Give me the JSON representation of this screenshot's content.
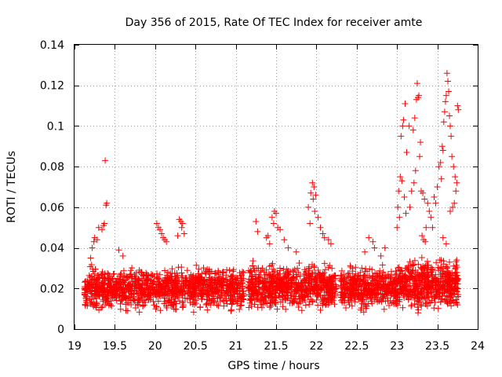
{
  "chart_data": {
    "type": "scatter",
    "title": "Day 356 of 2015, Rate Of TEC Index for receiver amte",
    "xlabel": "GPS time / hours",
    "ylabel": "ROTI / TECUs",
    "xlim": [
      19,
      24
    ],
    "ylim": [
      0,
      0.14
    ],
    "grid": true,
    "marker": "+",
    "marker_color": "#ff0000",
    "x_ticks": [
      {
        "value": 19,
        "label": "19"
      },
      {
        "value": 19.5,
        "label": "19.5"
      },
      {
        "value": 20,
        "label": "20"
      },
      {
        "value": 20.5,
        "label": "20.5"
      },
      {
        "value": 21,
        "label": "21"
      },
      {
        "value": 21.5,
        "label": "21.5"
      },
      {
        "value": 22,
        "label": "22"
      },
      {
        "value": 22.5,
        "label": "22.5"
      },
      {
        "value": 23,
        "label": "23"
      },
      {
        "value": 23.5,
        "label": "23.5"
      },
      {
        "value": 24,
        "label": "24"
      }
    ],
    "y_ticks": [
      {
        "value": 0,
        "label": "0"
      },
      {
        "value": 0.02,
        "label": "0.02"
      },
      {
        "value": 0.04,
        "label": "0.04"
      },
      {
        "value": 0.06,
        "label": "0.06"
      },
      {
        "value": 0.08,
        "label": "0.08"
      },
      {
        "value": 0.1,
        "label": "0.1"
      },
      {
        "value": 0.12,
        "label": "0.12"
      },
      {
        "value": 0.14,
        "label": "0.14"
      }
    ],
    "series": [
      {
        "name": "ROTI",
        "points": [
          [
            19.38,
            0.083
          ],
          [
            19.4,
            0.062
          ],
          [
            19.39,
            0.061
          ],
          [
            19.37,
            0.052
          ],
          [
            19.36,
            0.051
          ],
          [
            19.34,
            0.049
          ],
          [
            19.3,
            0.05
          ],
          [
            19.28,
            0.044
          ],
          [
            19.25,
            0.045
          ],
          [
            19.24,
            0.043
          ],
          [
            19.22,
            0.04
          ],
          [
            19.2,
            0.035
          ],
          [
            19.55,
            0.039
          ],
          [
            19.6,
            0.036
          ],
          [
            20.02,
            0.052
          ],
          [
            20.04,
            0.05
          ],
          [
            20.06,
            0.049
          ],
          [
            20.08,
            0.047
          ],
          [
            20.1,
            0.045
          ],
          [
            20.12,
            0.044
          ],
          [
            20.14,
            0.043
          ],
          [
            20.3,
            0.054
          ],
          [
            20.32,
            0.053
          ],
          [
            20.34,
            0.052
          ],
          [
            20.33,
            0.05
          ],
          [
            20.36,
            0.047
          ],
          [
            20.28,
            0.046
          ],
          [
            21.25,
            0.053
          ],
          [
            21.27,
            0.048
          ],
          [
            21.45,
            0.055
          ],
          [
            21.48,
            0.058
          ],
          [
            21.5,
            0.057
          ],
          [
            21.47,
            0.052
          ],
          [
            21.52,
            0.05
          ],
          [
            21.55,
            0.049
          ],
          [
            21.4,
            0.046
          ],
          [
            21.38,
            0.045
          ],
          [
            21.42,
            0.042
          ],
          [
            21.6,
            0.044
          ],
          [
            21.65,
            0.04
          ],
          [
            21.75,
            0.038
          ],
          [
            21.95,
            0.072
          ],
          [
            21.97,
            0.07
          ],
          [
            21.93,
            0.067
          ],
          [
            21.99,
            0.066
          ],
          [
            21.96,
            0.064
          ],
          [
            21.9,
            0.06
          ],
          [
            21.98,
            0.058
          ],
          [
            22.02,
            0.055
          ],
          [
            21.92,
            0.052
          ],
          [
            22.05,
            0.05
          ],
          [
            22.08,
            0.047
          ],
          [
            22.1,
            0.045
          ],
          [
            22.15,
            0.044
          ],
          [
            22.18,
            0.042
          ],
          [
            22.65,
            0.045
          ],
          [
            22.7,
            0.043
          ],
          [
            22.72,
            0.04
          ],
          [
            22.6,
            0.038
          ],
          [
            22.8,
            0.036
          ],
          [
            22.85,
            0.04
          ],
          [
            23.05,
            0.095
          ],
          [
            23.07,
            0.1
          ],
          [
            23.08,
            0.103
          ],
          [
            23.1,
            0.111
          ],
          [
            23.12,
            0.087
          ],
          [
            23.04,
            0.075
          ],
          [
            23.06,
            0.073
          ],
          [
            23.02,
            0.068
          ],
          [
            23.09,
            0.065
          ],
          [
            23.01,
            0.06
          ],
          [
            23.03,
            0.055
          ],
          [
            23.0,
            0.05
          ],
          [
            23.11,
            0.057
          ],
          [
            23.15,
            0.1
          ],
          [
            23.2,
            0.098
          ],
          [
            23.22,
            0.104
          ],
          [
            23.24,
            0.113
          ],
          [
            23.25,
            0.121
          ],
          [
            23.27,
            0.115
          ],
          [
            23.26,
            0.114
          ],
          [
            23.28,
            0.085
          ],
          [
            23.29,
            0.092
          ],
          [
            23.23,
            0.078
          ],
          [
            23.21,
            0.072
          ],
          [
            23.18,
            0.068
          ],
          [
            23.16,
            0.06
          ],
          [
            23.3,
            0.068
          ],
          [
            23.32,
            0.067
          ],
          [
            23.34,
            0.064
          ],
          [
            23.38,
            0.062
          ],
          [
            23.4,
            0.058
          ],
          [
            23.42,
            0.055
          ],
          [
            23.44,
            0.05
          ],
          [
            23.46,
            0.065
          ],
          [
            23.48,
            0.062
          ],
          [
            23.36,
            0.05
          ],
          [
            23.31,
            0.046
          ],
          [
            23.33,
            0.044
          ],
          [
            23.35,
            0.043
          ],
          [
            23.5,
            0.07
          ],
          [
            23.52,
            0.08
          ],
          [
            23.54,
            0.082
          ],
          [
            23.56,
            0.09
          ],
          [
            23.57,
            0.088
          ],
          [
            23.58,
            0.102
          ],
          [
            23.59,
            0.107
          ],
          [
            23.6,
            0.112
          ],
          [
            23.61,
            0.115
          ],
          [
            23.62,
            0.126
          ],
          [
            23.63,
            0.122
          ],
          [
            23.64,
            0.117
          ],
          [
            23.55,
            0.074
          ],
          [
            23.65,
            0.105
          ],
          [
            23.66,
            0.1
          ],
          [
            23.67,
            0.095
          ],
          [
            23.68,
            0.085
          ],
          [
            23.7,
            0.08
          ],
          [
            23.72,
            0.075
          ],
          [
            23.74,
            0.072
          ],
          [
            23.75,
            0.11
          ],
          [
            23.76,
            0.108
          ],
          [
            23.73,
            0.068
          ],
          [
            23.71,
            0.062
          ],
          [
            23.69,
            0.06
          ],
          [
            23.66,
            0.058
          ],
          [
            23.53,
            0.034
          ],
          [
            23.58,
            0.032
          ],
          [
            23.62,
            0.03
          ],
          [
            23.65,
            0.033
          ],
          [
            23.7,
            0.031
          ],
          [
            23.74,
            0.034
          ],
          [
            23.68,
            0.014
          ],
          [
            23.72,
            0.013
          ],
          [
            23.75,
            0.012
          ],
          [
            23.64,
            0.016
          ],
          [
            23.57,
            0.045
          ],
          [
            23.61,
            0.042
          ]
        ],
        "bands": [
          {
            "from": 19.12,
            "to": 21.1,
            "center": 0.02,
            "spread": 0.013,
            "min": 0.006,
            "max": 0.037,
            "count": 1200
          },
          {
            "from": 21.15,
            "to": 22.25,
            "center": 0.021,
            "spread": 0.014,
            "min": 0.008,
            "max": 0.043,
            "count": 700
          },
          {
            "from": 22.3,
            "to": 23.0,
            "center": 0.02,
            "spread": 0.013,
            "min": 0.007,
            "max": 0.038,
            "count": 450
          },
          {
            "from": 23.0,
            "to": 23.76,
            "center": 0.022,
            "spread": 0.015,
            "min": 0.008,
            "max": 0.045,
            "count": 550
          }
        ]
      }
    ]
  }
}
